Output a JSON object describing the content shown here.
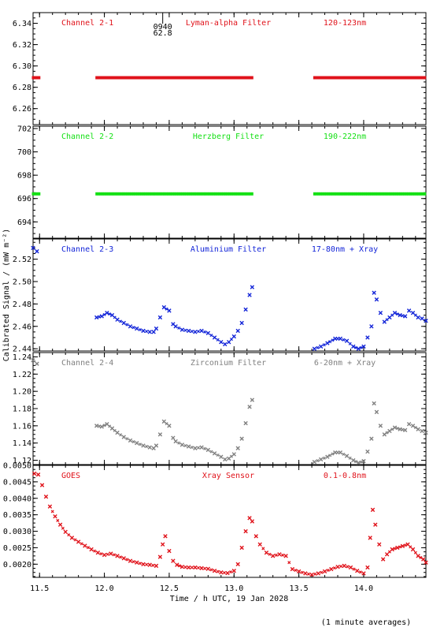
{
  "x_axis": {
    "label": "Time / h UTC, 19 Jan 2028",
    "range": [
      11.45,
      14.48
    ],
    "ticks": [
      11.5,
      12.0,
      12.5,
      13.0,
      13.5,
      14.0
    ],
    "tick_labels": [
      "11.5",
      "12.0",
      "12.5",
      "13.0",
      "13.5",
      "14.0"
    ]
  },
  "y_axis_label": "Calibrated Signal / (mW m⁻²)",
  "footnote": "(1 minute averages)",
  "marker": {
    "time_label": "0940",
    "value_label": "62.8",
    "x": 12.45
  },
  "chart_data": [
    {
      "type": "scatter",
      "channel": "Channel 2-1",
      "filter": "Lyman-alpha Filter",
      "band": "120-123nm",
      "color": "#e0121a",
      "marker": "square",
      "ylim": [
        6.245,
        6.35
      ],
      "yticks": [
        6.26,
        6.28,
        6.3,
        6.32,
        6.34
      ],
      "ytick_labels": [
        "6.26",
        "6.28",
        "6.30",
        "6.32",
        "6.34"
      ],
      "segments": [
        {
          "x_start": 11.45,
          "x_end": 11.51,
          "value": 6.289
        },
        {
          "x_start": 11.94,
          "x_end": 13.14,
          "value": 6.289
        },
        {
          "x_start": 13.62,
          "x_end": 14.48,
          "value": 6.289
        }
      ]
    },
    {
      "type": "scatter",
      "channel": "Channel 2-2",
      "filter": "Herzberg Filter",
      "band": "190-222nm",
      "color": "#14e014",
      "marker": "square",
      "ylim": [
        692.6,
        702.2
      ],
      "yticks": [
        694,
        696,
        698,
        700,
        702
      ],
      "ytick_labels": [
        "694",
        "696",
        "698",
        "700",
        "702"
      ],
      "segments": [
        {
          "x_start": 11.45,
          "x_end": 11.51,
          "value": 696.4
        },
        {
          "x_start": 11.94,
          "x_end": 13.14,
          "value": 696.4
        },
        {
          "x_start": 13.62,
          "x_end": 14.48,
          "value": 696.4
        }
      ]
    },
    {
      "type": "scatter",
      "channel": "Channel 2-3",
      "filter": "Aluminium Filter",
      "band": "17-80nm + Xray",
      "color": "#1224d8",
      "marker": "x",
      "ylim": [
        2.438,
        2.538
      ],
      "yticks": [
        2.44,
        2.46,
        2.48,
        2.5,
        2.52
      ],
      "ytick_labels": [
        "2.44",
        "2.46",
        "2.48",
        "2.50",
        "2.52"
      ],
      "gaps": [
        [
          11.51,
          11.94
        ],
        [
          13.14,
          13.62
        ]
      ],
      "x": [
        11.45,
        11.48,
        11.94,
        11.98,
        12.02,
        12.06,
        12.1,
        12.15,
        12.2,
        12.25,
        12.3,
        12.35,
        12.38,
        12.4,
        12.43,
        12.46,
        12.5,
        12.53,
        12.55,
        12.6,
        12.65,
        12.7,
        12.75,
        12.8,
        12.85,
        12.9,
        12.93,
        12.96,
        13.0,
        13.03,
        13.06,
        13.09,
        13.12,
        13.14,
        13.62,
        13.67,
        13.72,
        13.78,
        13.82,
        13.87,
        13.92,
        13.96,
        14.0,
        14.03,
        14.06,
        14.08,
        14.1,
        14.13,
        14.16,
        14.2,
        14.24,
        14.28,
        14.32,
        14.35,
        14.38,
        14.42,
        14.45,
        14.48
      ],
      "values": [
        2.53,
        2.527,
        2.468,
        2.469,
        2.472,
        2.47,
        2.466,
        2.463,
        2.46,
        2.458,
        2.456,
        2.455,
        2.455,
        2.458,
        2.468,
        2.477,
        2.474,
        2.462,
        2.46,
        2.457,
        2.456,
        2.455,
        2.456,
        2.454,
        2.45,
        2.446,
        2.444,
        2.446,
        2.451,
        2.456,
        2.463,
        2.475,
        2.488,
        2.495,
        2.44,
        2.442,
        2.445,
        2.449,
        2.449,
        2.447,
        2.442,
        2.44,
        2.442,
        2.45,
        2.46,
        2.49,
        2.484,
        2.472,
        2.464,
        2.468,
        2.472,
        2.47,
        2.469,
        2.474,
        2.472,
        2.468,
        2.467,
        2.465
      ]
    },
    {
      "type": "scatter",
      "channel": "Channel 2-4",
      "filter": "Zirconium Filter",
      "band": "6-20nm + Xray",
      "color": "#808080",
      "marker": "x",
      "ylim": [
        1.115,
        1.245
      ],
      "yticks": [
        1.12,
        1.14,
        1.16,
        1.18,
        1.2,
        1.22,
        1.24
      ],
      "ytick_labels": [
        "1.12",
        "1.14",
        "1.16",
        "1.18",
        "1.20",
        "1.22",
        "1.24"
      ],
      "gaps": [
        [
          11.51,
          11.94
        ],
        [
          13.14,
          13.62
        ]
      ],
      "x": [
        11.45,
        11.48,
        11.94,
        11.98,
        12.02,
        12.06,
        12.1,
        12.15,
        12.2,
        12.25,
        12.3,
        12.35,
        12.38,
        12.4,
        12.43,
        12.46,
        12.5,
        12.53,
        12.55,
        12.6,
        12.65,
        12.7,
        12.75,
        12.8,
        12.85,
        12.9,
        12.93,
        12.96,
        13.0,
        13.03,
        13.06,
        13.09,
        13.12,
        13.14,
        13.62,
        13.67,
        13.72,
        13.78,
        13.82,
        13.87,
        13.92,
        13.96,
        14.0,
        14.03,
        14.06,
        14.08,
        14.1,
        14.13,
        14.16,
        14.2,
        14.24,
        14.28,
        14.32,
        14.35,
        14.38,
        14.42,
        14.45,
        14.48
      ],
      "values": [
        1.236,
        1.232,
        1.16,
        1.159,
        1.162,
        1.157,
        1.152,
        1.147,
        1.143,
        1.14,
        1.137,
        1.135,
        1.134,
        1.137,
        1.15,
        1.165,
        1.16,
        1.146,
        1.142,
        1.138,
        1.136,
        1.134,
        1.135,
        1.132,
        1.128,
        1.124,
        1.121,
        1.122,
        1.127,
        1.134,
        1.145,
        1.163,
        1.182,
        1.19,
        1.118,
        1.121,
        1.124,
        1.129,
        1.129,
        1.125,
        1.12,
        1.117,
        1.119,
        1.13,
        1.145,
        1.186,
        1.176,
        1.16,
        1.15,
        1.154,
        1.158,
        1.156,
        1.155,
        1.162,
        1.16,
        1.156,
        1.154,
        1.152
      ]
    },
    {
      "type": "scatter",
      "channel": "GOES",
      "filter": "Xray Sensor",
      "band": "0.1-0.8nm",
      "color": "#e0121a",
      "marker": "x",
      "ylim": [
        0.0016,
        0.005
      ],
      "yticks": [
        0.002,
        0.0025,
        0.003,
        0.0035,
        0.004,
        0.0045,
        0.005
      ],
      "ytick_labels": [
        "0.0020",
        "0.0025",
        "0.0030",
        "0.0035",
        "0.0040",
        "0.0045",
        "0.0050"
      ],
      "x": [
        11.46,
        11.49,
        11.52,
        11.55,
        11.58,
        11.62,
        11.66,
        11.7,
        11.75,
        11.8,
        11.85,
        11.9,
        11.95,
        12.0,
        12.05,
        12.1,
        12.15,
        12.2,
        12.25,
        12.3,
        12.35,
        12.4,
        12.43,
        12.45,
        12.47,
        12.5,
        12.53,
        12.56,
        12.6,
        12.65,
        12.7,
        12.75,
        12.8,
        12.85,
        12.9,
        12.95,
        13.0,
        13.03,
        13.06,
        13.09,
        13.12,
        13.14,
        13.17,
        13.2,
        13.25,
        13.3,
        13.35,
        13.4,
        13.45,
        13.5,
        13.55,
        13.6,
        13.65,
        13.7,
        13.75,
        13.8,
        13.85,
        13.9,
        13.95,
        14.0,
        14.03,
        14.05,
        14.07,
        14.09,
        14.12,
        14.15,
        14.18,
        14.22,
        14.26,
        14.3,
        14.34,
        14.38,
        14.42,
        14.46,
        14.48
      ],
      "values": [
        0.00475,
        0.00472,
        0.0044,
        0.00405,
        0.00375,
        0.00345,
        0.0032,
        0.00298,
        0.0028,
        0.00268,
        0.00256,
        0.00245,
        0.00235,
        0.00228,
        0.00232,
        0.00225,
        0.00218,
        0.0021,
        0.00205,
        0.002,
        0.00198,
        0.00195,
        0.00222,
        0.0026,
        0.00285,
        0.0024,
        0.0021,
        0.00198,
        0.00192,
        0.0019,
        0.0019,
        0.00188,
        0.00186,
        0.0018,
        0.00175,
        0.00173,
        0.0018,
        0.002,
        0.0025,
        0.003,
        0.0034,
        0.0033,
        0.00285,
        0.0026,
        0.00235,
        0.00225,
        0.0023,
        0.00225,
        0.00185,
        0.00178,
        0.00172,
        0.00168,
        0.00172,
        0.00178,
        0.00185,
        0.00192,
        0.00195,
        0.0019,
        0.0018,
        0.00172,
        0.0019,
        0.0028,
        0.00365,
        0.0032,
        0.0026,
        0.00215,
        0.0023,
        0.00245,
        0.0025,
        0.00255,
        0.0026,
        0.00245,
        0.00225,
        0.00215,
        0.00205
      ]
    }
  ]
}
